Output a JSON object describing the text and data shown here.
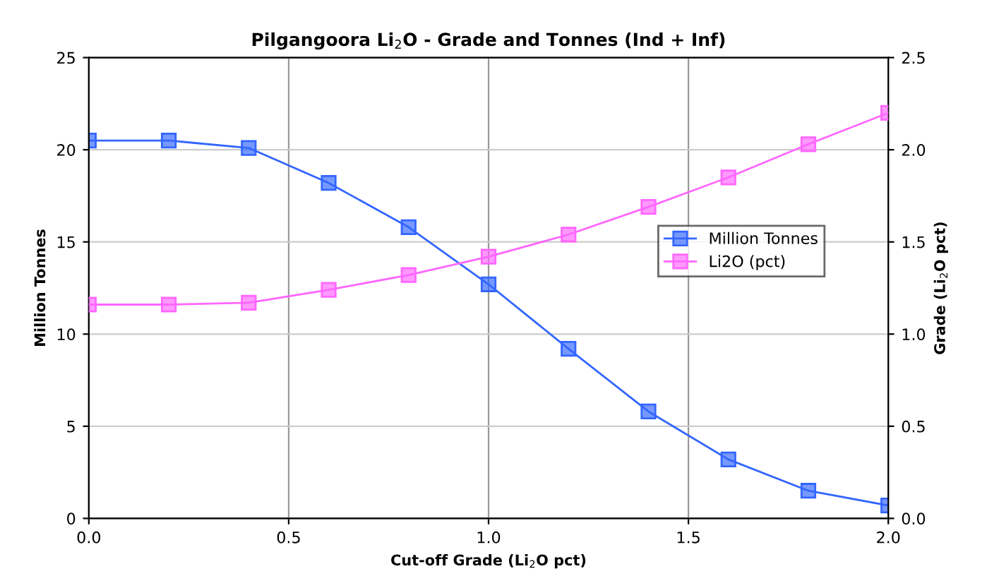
{
  "chart_data": {
    "type": "line",
    "title": "Pilgangoora Li$_{2}$O - Grade and Tonnes (Ind + Inf)",
    "xlabel": "Cut-off Grade (Li$_{2}$O pct)",
    "ylabel": "Million Tonnes",
    "y2label": "Grade (Li$_{2}$O pct)",
    "x": [
      0.0,
      0.2,
      0.4,
      0.6,
      0.8,
      1.0,
      1.2,
      1.4,
      1.6,
      1.8,
      2.0
    ],
    "series": [
      {
        "name": "Million Tonnes",
        "color": "#3366ff",
        "values": [
          20.5,
          20.5,
          20.1,
          18.2,
          15.8,
          12.7,
          9.2,
          5.8,
          3.2,
          1.5,
          0.7
        ]
      },
      {
        "name": "Li2O (pct)",
        "color": "#ff66ff",
        "axis": "y2",
        "values": [
          1.16,
          1.16,
          1.17,
          1.24,
          1.32,
          1.42,
          1.54,
          1.69,
          1.85,
          2.03,
          2.2
        ]
      }
    ],
    "xlim": [
      0,
      2
    ],
    "xticks": [
      {
        "value": 0,
        "label": "0.0"
      },
      0.5,
      {
        "value": 1,
        "label": "1.0"
      },
      1.5,
      {
        "value": 2,
        "label": "2.0"
      }
    ],
    "ylim": [
      0,
      25
    ],
    "yticks": [
      0,
      5,
      10,
      15,
      20,
      25
    ],
    "y2lim": [
      0,
      2.5
    ],
    "y2ticks": [
      {
        "value": 0,
        "label": "0.0"
      },
      0.5,
      {
        "value": 1,
        "label": "1.0"
      },
      1.5,
      {
        "value": 2,
        "label": "2.0"
      },
      2.5
    ],
    "grid": true,
    "legend": "right",
    "marker": "square",
    "line_style": "solid"
  }
}
